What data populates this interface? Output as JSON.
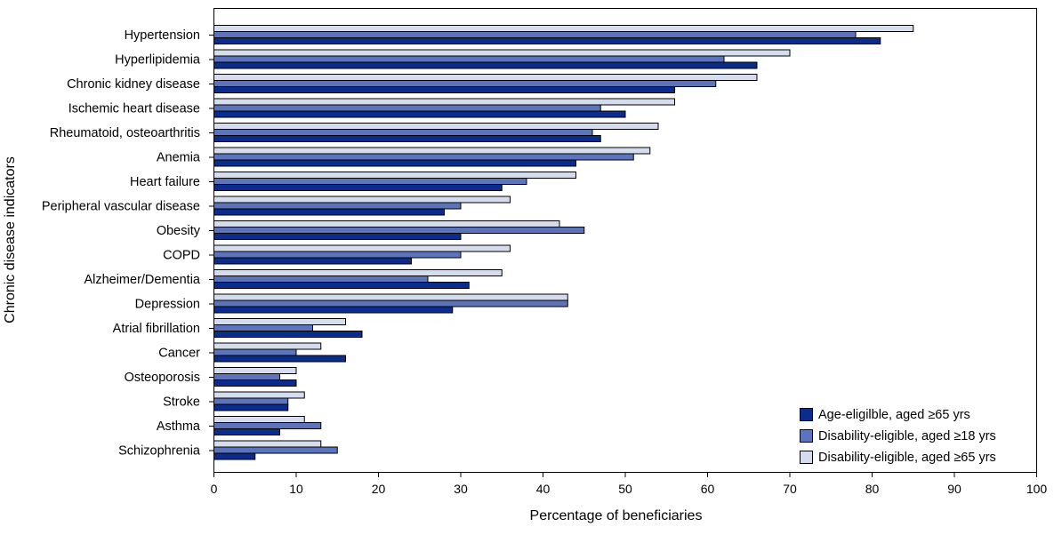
{
  "chart_data": {
    "type": "bar",
    "orientation": "horizontal",
    "title": "",
    "xlabel": "Percentage of beneficiaries",
    "ylabel": "Chronic disease indicators",
    "xlim": [
      0,
      100
    ],
    "xticks": [
      0,
      10,
      20,
      30,
      40,
      50,
      60,
      70,
      80,
      90,
      100
    ],
    "grid": false,
    "legend_position": "bottom-right",
    "categories": [
      "Hypertension",
      "Hyperlipidemia",
      "Chronic kidney disease",
      "Ischemic heart disease",
      "Rheumatoid, osteoarthritis",
      "Anemia",
      "Heart failure",
      "Peripheral vascular disease",
      "Obesity",
      "COPD",
      "Alzheimer/Dementia",
      "Depression",
      "Atrial fibrillation",
      "Cancer",
      "Osteoporosis",
      "Stroke",
      "Asthma",
      "Schizophrenia"
    ],
    "series": [
      {
        "name": "Disability-eligible, aged ≥65 yrs",
        "color": "#d4dcee",
        "values": [
          85,
          70,
          66,
          56,
          54,
          53,
          44,
          36,
          42,
          36,
          35,
          43,
          16,
          13,
          10,
          11,
          11,
          13
        ]
      },
      {
        "name": "Disability-eligible, aged ≥18 yrs",
        "color": "#5b74bb",
        "values": [
          78,
          62,
          61,
          47,
          46,
          51,
          38,
          30,
          45,
          30,
          26,
          43,
          12,
          10,
          8,
          9,
          13,
          15
        ]
      },
      {
        "name": "Age-eligilble, aged ≥65 yrs",
        "color": "#0a2c8c",
        "values": [
          81,
          66,
          56,
          50,
          47,
          44,
          35,
          28,
          30,
          24,
          31,
          29,
          18,
          16,
          10,
          9,
          8,
          5
        ]
      }
    ],
    "legend": [
      {
        "label": "Age-eligilble, aged ≥65 yrs",
        "color": "#0a2c8c"
      },
      {
        "label": "Disability-eligible, aged ≥18 yrs",
        "color": "#5b74bb"
      },
      {
        "label": "Disability-eligible, aged ≥65 yrs",
        "color": "#d4dcee"
      }
    ]
  }
}
